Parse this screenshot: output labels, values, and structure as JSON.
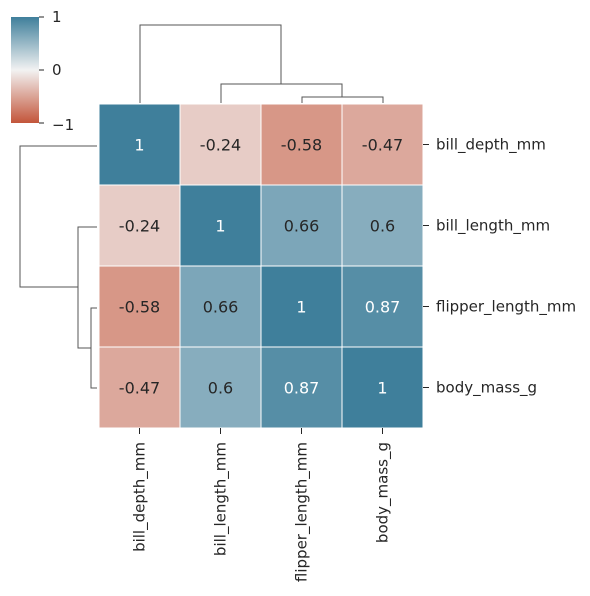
{
  "chart_data": {
    "type": "heatmap",
    "title": "",
    "row_labels": [
      "bill_depth_mm",
      "bill_length_mm",
      "flipper_length_mm",
      "body_mass_g"
    ],
    "col_labels": [
      "bill_depth_mm",
      "bill_length_mm",
      "flipper_length_mm",
      "body_mass_g"
    ],
    "values": [
      [
        1,
        -0.24,
        -0.58,
        -0.47
      ],
      [
        -0.24,
        1,
        0.66,
        0.6
      ],
      [
        -0.58,
        0.66,
        1,
        0.87
      ],
      [
        -0.47,
        0.6,
        0.87,
        1
      ]
    ],
    "cell_text": [
      [
        "1",
        "-0.24",
        "-0.58",
        "-0.47"
      ],
      [
        "-0.24",
        "1",
        "0.66",
        "0.6"
      ],
      [
        "-0.58",
        "0.66",
        "1",
        "0.87"
      ],
      [
        "-0.47",
        "0.6",
        "0.87",
        "1"
      ]
    ],
    "colorbar": {
      "vmin": -1,
      "vmax": 1,
      "ticks": [
        1,
        0,
        -1
      ],
      "tick_labels": [
        "1",
        "0",
        "−1"
      ],
      "colormap": "diverging red-blue",
      "color_low": "#c3553a",
      "color_mid": "#f2f2f2",
      "color_high": "#3f7f9b"
    },
    "dendrogram": {
      "row_order_merges": "(bill_depth_mm, ((bill_length_mm, (flipper_length_mm, body_mass_g))))",
      "col_order_merges": "(bill_depth_mm, ((bill_length_mm, (flipper_length_mm, body_mass_g))))"
    },
    "grid": false,
    "legend": "colorbar top-left"
  }
}
